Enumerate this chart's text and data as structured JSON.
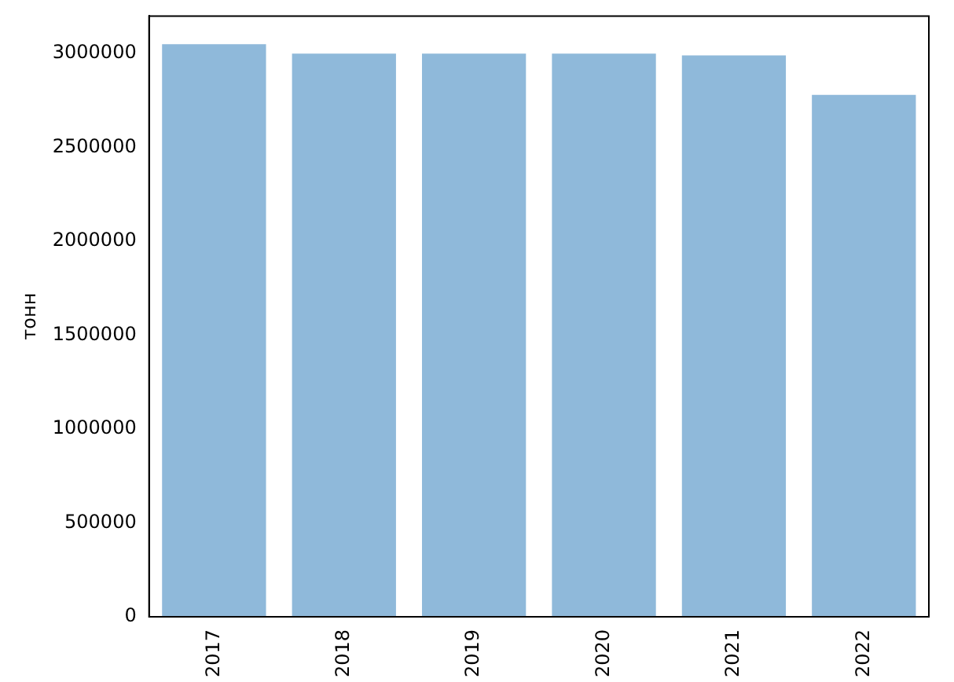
{
  "chart_data": {
    "type": "bar",
    "ylabel": "тонн",
    "categories": [
      "2017",
      "2018",
      "2019",
      "2020",
      "2021",
      "2022"
    ],
    "values": [
      3050000,
      3000000,
      3000000,
      3000000,
      2990000,
      2780000
    ],
    "color": "#8fb9da",
    "ylim": [
      0,
      3200000
    ],
    "yticks": [
      0,
      500000,
      1000000,
      1500000,
      2000000,
      2500000,
      3000000
    ],
    "grid": false,
    "legend": false
  }
}
